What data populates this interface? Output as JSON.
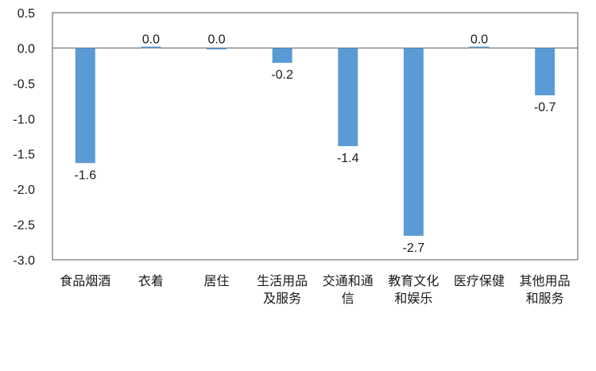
{
  "chart_data": {
    "type": "bar",
    "categories": [
      "食品烟酒",
      "衣着",
      "居住",
      "生活用品\n及服务",
      "交通和通\n信",
      "教育文化\n和娱乐",
      "医疗保健",
      "其他用品\n和服务"
    ],
    "values": [
      -1.6,
      0.0,
      0.0,
      -0.2,
      -1.4,
      -2.7,
      0.0,
      -0.7
    ],
    "value_labels": [
      "-1.6",
      "0.0",
      "0.0",
      "-0.2",
      "-1.4",
      "-2.7",
      "0.0",
      "-0.7"
    ],
    "bar_values": [
      -1.63,
      0.02,
      -0.02,
      -0.21,
      -1.39,
      -2.66,
      0.02,
      -0.67
    ],
    "ylim": [
      -3.0,
      0.5
    ],
    "yticks": [
      0.5,
      0.0,
      -0.5,
      -1.0,
      -1.5,
      -2.0,
      -2.5,
      -3.0
    ],
    "ytick_labels": [
      "0.5",
      "0.0",
      "-0.5",
      "-1.0",
      "-1.5",
      "-2.0",
      "-2.5",
      "-3.0"
    ],
    "grid": false,
    "legend": "none",
    "bar_color": "#5b9bd5",
    "frame_color": "#595959",
    "title": "",
    "xlabel": "",
    "ylabel": ""
  }
}
